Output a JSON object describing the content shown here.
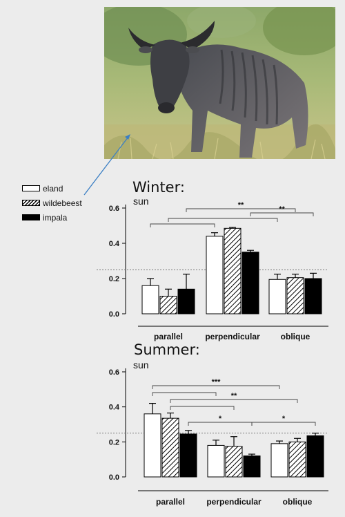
{
  "legend": {
    "items": [
      {
        "label": "eland",
        "pattern": "white"
      },
      {
        "label": "wildebeest",
        "pattern": "hatched"
      },
      {
        "label": "impala",
        "pattern": "black"
      }
    ]
  },
  "chart_data": [
    {
      "type": "bar",
      "title": "Winter:",
      "subtitle": "sun",
      "categories": [
        "parallel",
        "perpendicular",
        "oblique"
      ],
      "series": [
        {
          "name": "eland",
          "values": [
            0.16,
            0.44,
            0.195
          ],
          "errors": [
            0.04,
            0.02,
            0.03
          ]
        },
        {
          "name": "wildebeest",
          "values": [
            0.1,
            0.485,
            0.205
          ],
          "errors": [
            0.04,
            0.005,
            0.02
          ]
        },
        {
          "name": "impala",
          "values": [
            0.14,
            0.35,
            0.2
          ],
          "errors": [
            0.085,
            0.01,
            0.03
          ]
        }
      ],
      "yticks": [
        "0.0",
        "0.2",
        "0.4",
        "0.6"
      ],
      "ylim": [
        0,
        0.62
      ],
      "reference_line": 0.25,
      "significance": [
        {
          "label": "**",
          "from": "impala-parallel",
          "to": "wildebeest-oblique"
        },
        {
          "label": "**",
          "from": "impala-perpendicular",
          "to": "impala-oblique"
        },
        {
          "label": "",
          "from": "wildebeest-parallel",
          "to": "eland-oblique"
        },
        {
          "label": "",
          "from": "eland-parallel",
          "to": "eland-perpendicular"
        }
      ]
    },
    {
      "type": "bar",
      "title": "Summer:",
      "subtitle": "sun",
      "categories": [
        "parallel",
        "perpendicular",
        "oblique"
      ],
      "series": [
        {
          "name": "eland",
          "values": [
            0.36,
            0.18,
            0.19
          ],
          "errors": [
            0.06,
            0.03,
            0.015
          ]
        },
        {
          "name": "wildebeest",
          "values": [
            0.335,
            0.175,
            0.2
          ],
          "errors": [
            0.03,
            0.055,
            0.02
          ]
        },
        {
          "name": "impala",
          "values": [
            0.245,
            0.12,
            0.235
          ],
          "errors": [
            0.02,
            0.01,
            0.015
          ]
        }
      ],
      "yticks": [
        "0.0",
        "0.2",
        "0.4",
        "0.6"
      ],
      "ylim": [
        0,
        0.62
      ],
      "reference_line": 0.25,
      "significance": [
        {
          "label": "***",
          "from": "eland-parallel",
          "to": "eland-oblique"
        },
        {
          "label": "",
          "from": "eland-parallel",
          "to": "eland-perpendicular"
        },
        {
          "label": "**",
          "from": "wildebeest-parallel",
          "to": "wildebeest-oblique"
        },
        {
          "label": "",
          "from": "wildebeest-parallel",
          "to": "wildebeest-perpendicular"
        },
        {
          "label": "*",
          "from": "impala-parallel",
          "to": "impala-perpendicular"
        },
        {
          "label": "*",
          "from": "impala-perpendicular",
          "to": "impala-oblique"
        }
      ]
    }
  ]
}
